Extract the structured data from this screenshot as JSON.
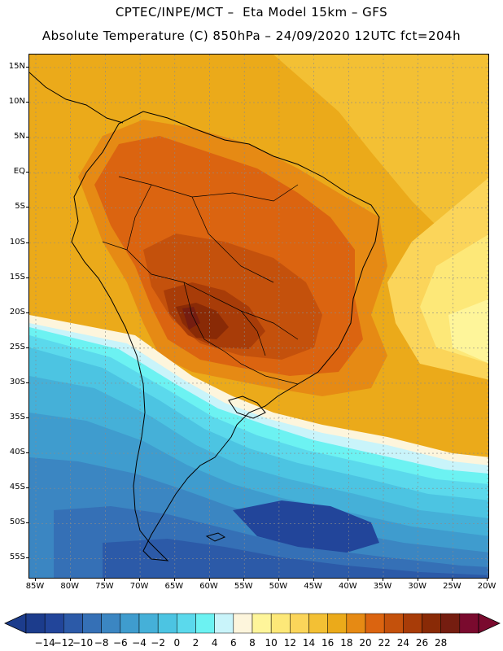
{
  "header": {
    "title": "CPTEC/INPE/MCT –  Eta Model 15km – GFS",
    "subtitle": "Absolute Temperature (C) 850hPa – 24/09/2020 12UTC fct=204h"
  },
  "map": {
    "lat_labels": [
      "15N",
      "10N",
      "5N",
      "EQ",
      "5S",
      "10S",
      "15S",
      "20S",
      "25S",
      "30S",
      "35S",
      "40S",
      "45S",
      "50S",
      "55S"
    ],
    "lon_labels": [
      "85W",
      "80W",
      "75W",
      "70W",
      "65W",
      "60W",
      "55W",
      "50W",
      "45W",
      "40W",
      "35W",
      "30W",
      "25W",
      "20W"
    ]
  },
  "colorbar": {
    "levels": [
      "-14",
      "-12",
      "-10",
      "-8",
      "-6",
      "-4",
      "-2",
      "0",
      "2",
      "4",
      "6",
      "8",
      "10",
      "12",
      "14",
      "16",
      "18",
      "20",
      "22",
      "24",
      "26",
      "28"
    ],
    "colors": [
      "#1c3c8c",
      "#22459a",
      "#2c5aa8",
      "#3570b6",
      "#3b86c2",
      "#3f9cce",
      "#45b0d8",
      "#4cc4e2",
      "#5bd9ec",
      "#6cf2f2",
      "#c9f4fa",
      "#fdf5dc",
      "#fef59a",
      "#fde878",
      "#fbd55a",
      "#f3c034",
      "#ebaa1a",
      "#e68a14",
      "#db6410",
      "#c4510c",
      "#a83c08",
      "#892a06",
      "#751d10",
      "#7a0a2e"
    ],
    "under_color": "#1c3c8c",
    "over_color": "#7a0a2e"
  }
}
